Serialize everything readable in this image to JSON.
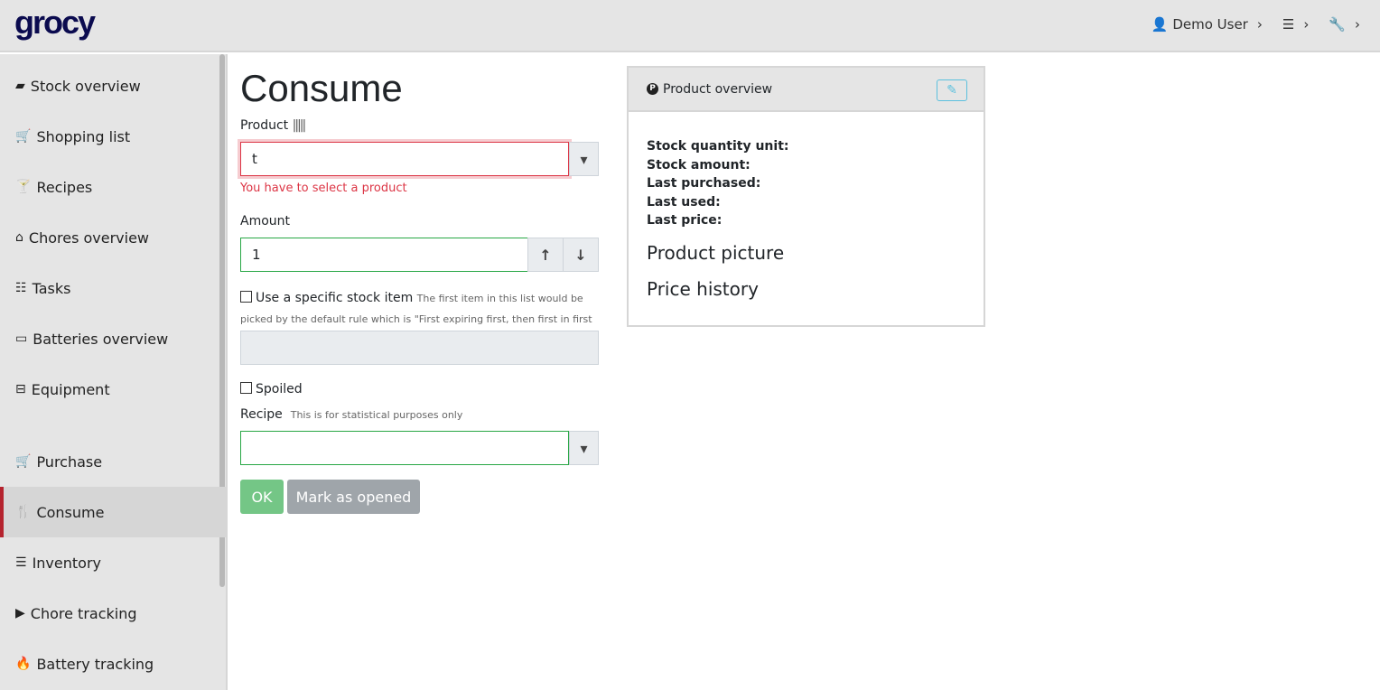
{
  "app": {
    "logo": "grocy"
  },
  "topnav": {
    "user": "Demo User"
  },
  "sidebar": {
    "items": [
      {
        "label": "Stock overview",
        "icon": "box-icon"
      },
      {
        "label": "Shopping list",
        "icon": "cart-icon"
      },
      {
        "label": "Recipes",
        "icon": "cocktail-icon"
      },
      {
        "label": "Chores overview",
        "icon": "home-icon"
      },
      {
        "label": "Tasks",
        "icon": "tasks-icon"
      },
      {
        "label": "Batteries overview",
        "icon": "battery-icon"
      },
      {
        "label": "Equipment",
        "icon": "toolbox-icon"
      },
      {
        "label": "Purchase",
        "icon": "cart-icon"
      },
      {
        "label": "Consume",
        "icon": "utensils-icon",
        "active": true
      },
      {
        "label": "Inventory",
        "icon": "list-icon"
      },
      {
        "label": "Chore tracking",
        "icon": "play-icon"
      },
      {
        "label": "Battery tracking",
        "icon": "fire-icon"
      }
    ]
  },
  "form": {
    "title": "Consume",
    "product_label": "Product",
    "product_value": "t",
    "product_error": "You have to select a product",
    "amount_label": "Amount",
    "amount_value": "1",
    "specific_label": "Use a specific stock item",
    "specific_hint": "The first item in this list would be picked by the default rule which is \"First expiring first, then first in first out\"",
    "spoiled_label": "Spoiled",
    "recipe_label": "Recipe",
    "recipe_hint": "This is for statistical purposes only",
    "ok": "OK",
    "mark_opened": "Mark as opened"
  },
  "overview": {
    "title": "Product overview",
    "fields": [
      "Stock quantity unit:",
      "Stock amount:",
      "Last purchased:",
      "Last used:",
      "Last price:"
    ],
    "picture": "Product picture",
    "price_history": "Price history"
  },
  "colors": {
    "accent": "#b5232e",
    "ok": "#74c686",
    "secondary": "#9fa5aa",
    "error": "#dc3545",
    "valid": "#28a745",
    "info": "#5bc0de"
  }
}
